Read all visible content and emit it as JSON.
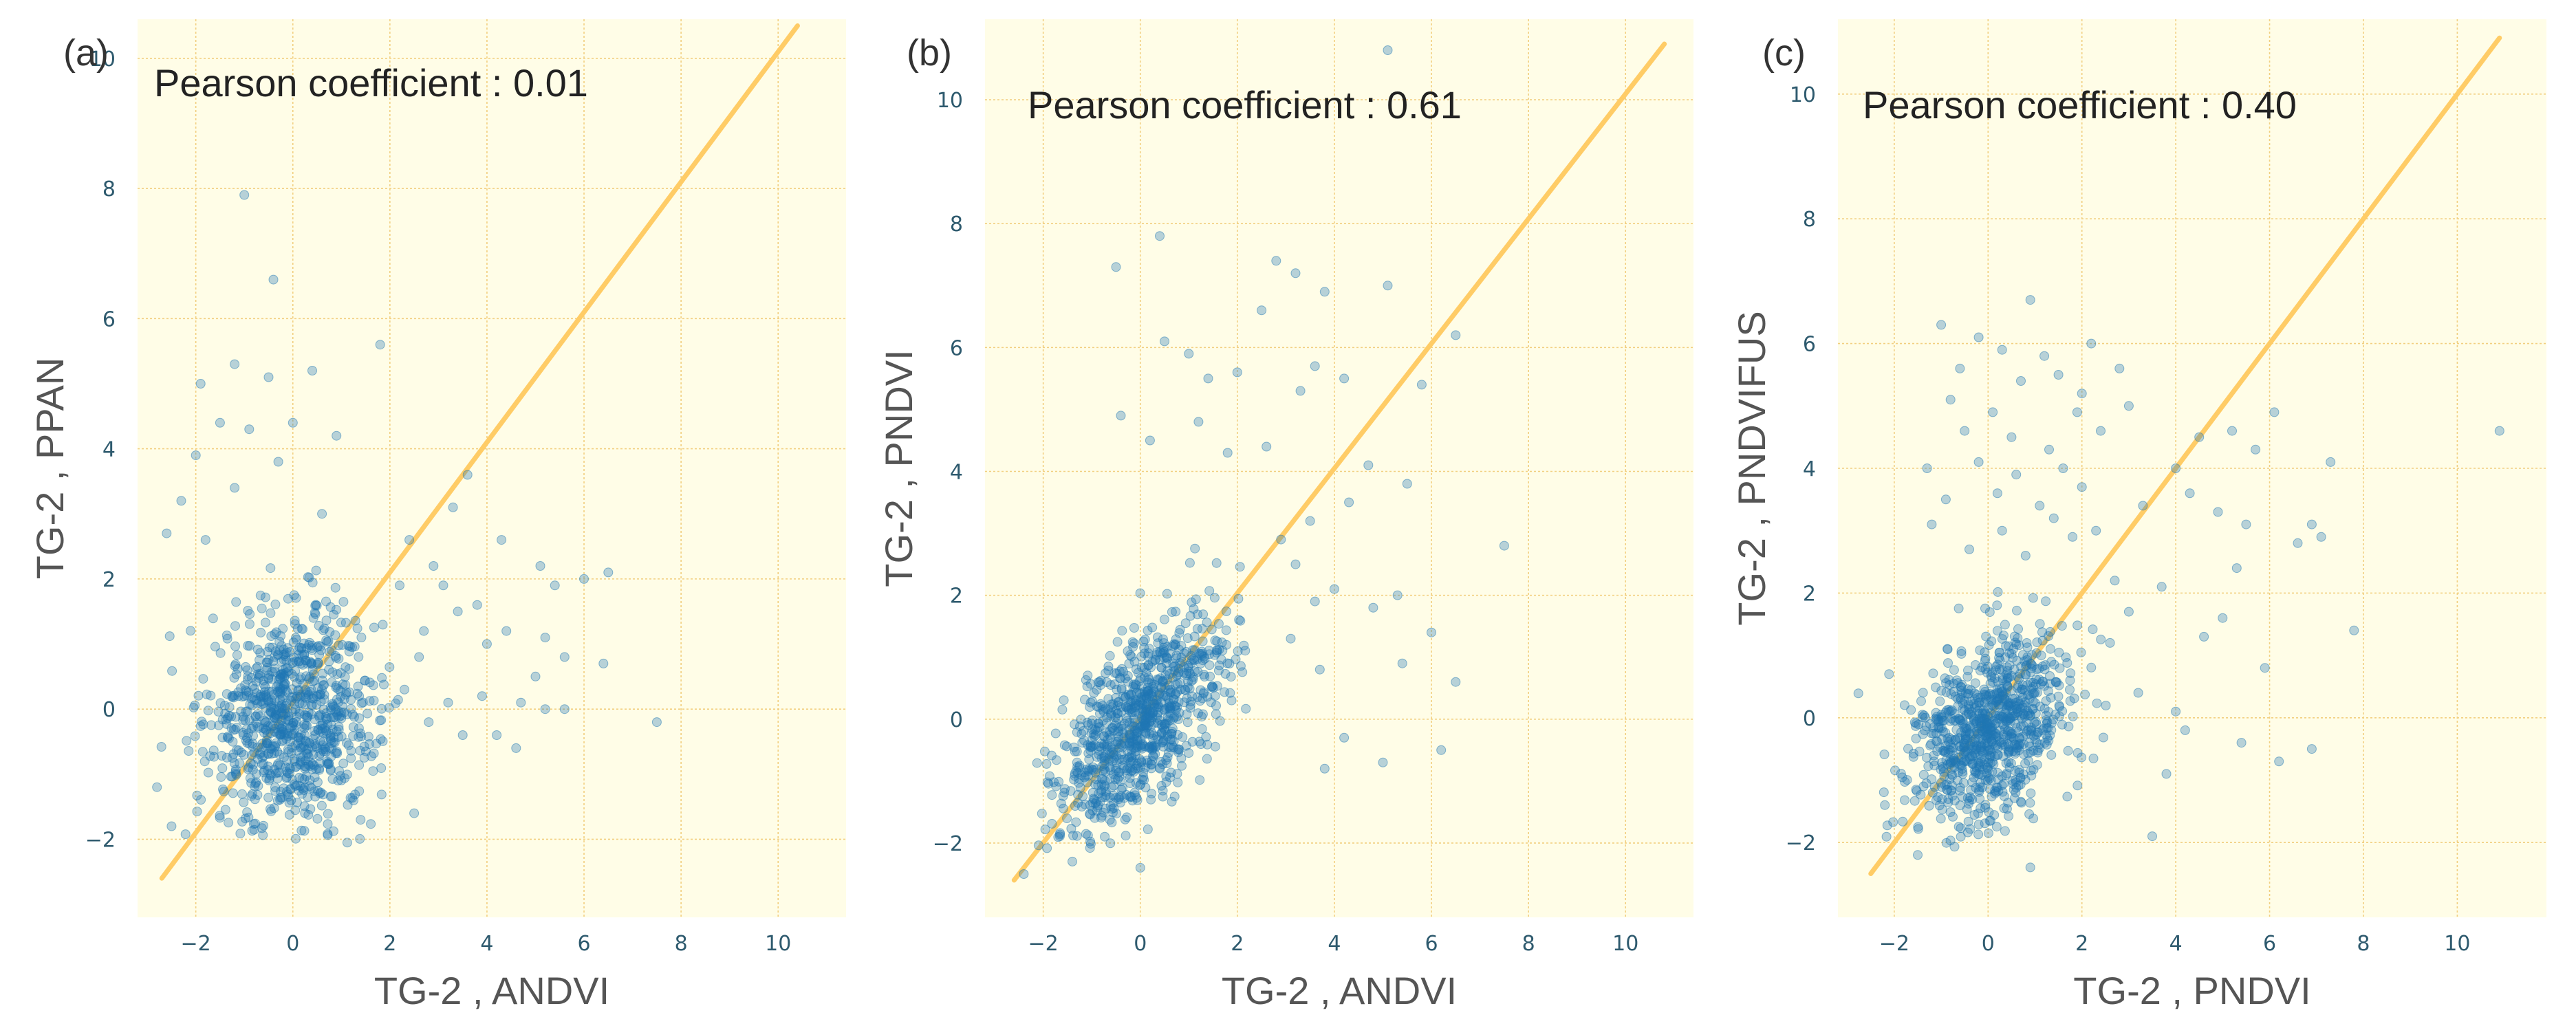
{
  "colors": {
    "panel_background": "#fffde7",
    "grid": "#f2cf80",
    "identity_line": "#ffcc66",
    "points": "#1f77b4",
    "tick_text": "#2e5a6e"
  },
  "chart_data": [
    {
      "type": "scatter",
      "panel_label": "(a)",
      "annotation": "Pearson coefficient : 0.01",
      "pearson": 0.01,
      "xlabel": "TG-2 , ANDVI",
      "ylabel": "TG-2 , PPAN",
      "xlim": [
        -3.2,
        11.4
      ],
      "ylim": [
        -3.2,
        10.6
      ],
      "xticks": [
        -2,
        0,
        2,
        4,
        6,
        8,
        10
      ],
      "yticks": [
        -2,
        0,
        2,
        4,
        6,
        8,
        10
      ],
      "grid": true,
      "identity_line": [
        [
          -2.7,
          -2.6
        ],
        [
          10.4,
          10.5
        ]
      ],
      "bulk": {
        "n": 900,
        "cx": 0.0,
        "cy": -0.15,
        "sx": 0.85,
        "sy": 0.85,
        "rho": 0.02
      },
      "outlier_points": [
        [
          -1.0,
          7.9
        ],
        [
          -0.4,
          6.6
        ],
        [
          1.8,
          5.6
        ],
        [
          0.4,
          5.2
        ],
        [
          -1.9,
          5.0
        ],
        [
          -1.2,
          5.3
        ],
        [
          -0.5,
          5.1
        ],
        [
          -1.5,
          4.4
        ],
        [
          -0.9,
          4.3
        ],
        [
          0.0,
          4.4
        ],
        [
          -2.0,
          3.9
        ],
        [
          -0.3,
          3.8
        ],
        [
          0.9,
          4.2
        ],
        [
          -2.3,
          3.2
        ],
        [
          -1.2,
          3.4
        ],
        [
          0.6,
          3.0
        ],
        [
          -1.8,
          2.6
        ],
        [
          -2.6,
          2.7
        ],
        [
          3.6,
          3.6
        ],
        [
          3.3,
          3.1
        ],
        [
          2.4,
          2.6
        ],
        [
          2.9,
          2.2
        ],
        [
          4.3,
          2.6
        ],
        [
          3.1,
          1.9
        ],
        [
          3.8,
          1.6
        ],
        [
          4.4,
          1.2
        ],
        [
          4.0,
          1.0
        ],
        [
          5.1,
          2.2
        ],
        [
          5.4,
          1.9
        ],
        [
          6.0,
          2.0
        ],
        [
          6.5,
          2.1
        ],
        [
          5.2,
          1.1
        ],
        [
          5.0,
          0.5
        ],
        [
          5.6,
          0.8
        ],
        [
          4.7,
          0.1
        ],
        [
          5.2,
          0.0
        ],
        [
          5.6,
          0.0
        ],
        [
          6.4,
          0.7
        ],
        [
          3.9,
          0.2
        ],
        [
          4.2,
          -0.4
        ],
        [
          4.6,
          -0.6
        ],
        [
          7.5,
          -0.2
        ],
        [
          2.2,
          1.9
        ],
        [
          2.6,
          0.8
        ],
        [
          2.3,
          0.3
        ],
        [
          2.8,
          -0.2
        ],
        [
          3.2,
          0.1
        ],
        [
          3.5,
          -0.4
        ],
        [
          2.7,
          1.2
        ],
        [
          3.4,
          1.5
        ],
        [
          -2.8,
          -1.2
        ],
        [
          -2.5,
          -1.8
        ],
        [
          2.5,
          -1.6
        ]
      ]
    },
    {
      "type": "scatter",
      "panel_label": "(b)",
      "annotation": "Pearson coefficient : 0.61",
      "pearson": 0.61,
      "xlabel": "TG-2 , ANDVI",
      "ylabel": "TG-2 , PNDVI",
      "xlim": [
        -3.2,
        11.4
      ],
      "ylim": [
        -3.2,
        11.3
      ],
      "xticks": [
        -2,
        0,
        2,
        4,
        6,
        8,
        10
      ],
      "yticks": [
        -2,
        0,
        2,
        4,
        6,
        8,
        10
      ],
      "grid": true,
      "identity_line": [
        [
          -2.6,
          -2.6
        ],
        [
          10.8,
          10.9
        ]
      ],
      "bulk": {
        "n": 900,
        "cx": 0.0,
        "cy": -0.1,
        "sx": 0.85,
        "sy": 0.85,
        "rho": 0.62
      },
      "outlier_points": [
        [
          5.1,
          10.8
        ],
        [
          0.4,
          7.8
        ],
        [
          -0.5,
          7.3
        ],
        [
          2.8,
          7.4
        ],
        [
          3.2,
          7.2
        ],
        [
          5.1,
          7.0
        ],
        [
          2.5,
          6.6
        ],
        [
          3.8,
          6.9
        ],
        [
          6.5,
          6.2
        ],
        [
          0.5,
          6.1
        ],
        [
          1.0,
          5.9
        ],
        [
          1.4,
          5.5
        ],
        [
          2.0,
          5.6
        ],
        [
          3.6,
          5.7
        ],
        [
          3.3,
          5.3
        ],
        [
          4.2,
          5.5
        ],
        [
          5.8,
          5.4
        ],
        [
          -0.4,
          4.9
        ],
        [
          1.2,
          4.8
        ],
        [
          2.6,
          4.4
        ],
        [
          1.8,
          4.3
        ],
        [
          0.2,
          4.5
        ],
        [
          4.7,
          4.1
        ],
        [
          5.5,
          3.8
        ],
        [
          3.5,
          3.2
        ],
        [
          4.3,
          3.5
        ],
        [
          7.5,
          2.8
        ],
        [
          5.3,
          2.0
        ],
        [
          4.8,
          1.8
        ],
        [
          6.0,
          1.4
        ],
        [
          3.1,
          1.3
        ],
        [
          3.7,
          0.8
        ],
        [
          4.2,
          -0.3
        ],
        [
          5.4,
          0.9
        ],
        [
          5.0,
          -0.7
        ],
        [
          6.2,
          -0.5
        ],
        [
          6.5,
          0.6
        ],
        [
          3.8,
          -0.8
        ],
        [
          -2.4,
          -2.5
        ],
        [
          -1.4,
          -2.3
        ],
        [
          0.0,
          -2.4
        ],
        [
          3.2,
          2.5
        ],
        [
          2.9,
          2.9
        ],
        [
          4.0,
          2.1
        ],
        [
          3.6,
          1.9
        ]
      ]
    },
    {
      "type": "scatter",
      "panel_label": "(c)",
      "annotation": "Pearson coefficient : 0.40",
      "pearson": 0.4,
      "xlabel": "TG-2 , PNDVI",
      "ylabel": "TG-2 , PNDVIFUS",
      "xlim": [
        -3.2,
        11.9
      ],
      "ylim": [
        -3.2,
        11.2
      ],
      "xticks": [
        -2,
        0,
        2,
        4,
        6,
        8,
        10
      ],
      "yticks": [
        -2,
        0,
        2,
        4,
        6,
        8,
        10
      ],
      "grid": true,
      "identity_line": [
        [
          -2.5,
          -2.5
        ],
        [
          10.9,
          10.9
        ]
      ],
      "bulk": {
        "n": 900,
        "cx": 0.0,
        "cy": -0.2,
        "sx": 0.85,
        "sy": 0.75,
        "rho": 0.28
      },
      "outlier_points": [
        [
          0.9,
          6.7
        ],
        [
          -1.0,
          6.3
        ],
        [
          -0.2,
          6.1
        ],
        [
          0.3,
          5.9
        ],
        [
          1.2,
          5.8
        ],
        [
          2.2,
          6.0
        ],
        [
          -0.6,
          5.6
        ],
        [
          0.7,
          5.4
        ],
        [
          1.5,
          5.5
        ],
        [
          2.0,
          5.2
        ],
        [
          -0.8,
          5.1
        ],
        [
          0.1,
          4.9
        ],
        [
          1.9,
          4.9
        ],
        [
          2.8,
          5.6
        ],
        [
          3.0,
          5.0
        ],
        [
          -0.5,
          4.6
        ],
        [
          0.5,
          4.5
        ],
        [
          1.3,
          4.3
        ],
        [
          2.4,
          4.6
        ],
        [
          -1.3,
          4.0
        ],
        [
          -0.2,
          4.1
        ],
        [
          0.6,
          3.9
        ],
        [
          1.6,
          4.0
        ],
        [
          -0.9,
          3.5
        ],
        [
          0.2,
          3.6
        ],
        [
          1.1,
          3.4
        ],
        [
          2.0,
          3.7
        ],
        [
          -1.2,
          3.1
        ],
        [
          0.3,
          3.0
        ],
        [
          1.4,
          3.2
        ],
        [
          2.3,
          3.0
        ],
        [
          -0.4,
          2.7
        ],
        [
          0.8,
          2.6
        ],
        [
          1.8,
          2.9
        ],
        [
          3.3,
          3.4
        ],
        [
          4.0,
          4.0
        ],
        [
          4.5,
          4.5
        ],
        [
          5.2,
          4.6
        ],
        [
          5.7,
          4.3
        ],
        [
          6.1,
          4.9
        ],
        [
          4.3,
          3.6
        ],
        [
          4.9,
          3.3
        ],
        [
          5.5,
          3.1
        ],
        [
          5.3,
          2.4
        ],
        [
          6.6,
          2.8
        ],
        [
          6.9,
          3.1
        ],
        [
          7.1,
          2.9
        ],
        [
          7.3,
          4.1
        ],
        [
          7.8,
          1.4
        ],
        [
          10.9,
          4.6
        ],
        [
          3.7,
          2.1
        ],
        [
          4.6,
          1.3
        ],
        [
          5.0,
          1.6
        ],
        [
          5.9,
          0.8
        ],
        [
          6.2,
          -0.7
        ],
        [
          6.9,
          -0.5
        ],
        [
          4.0,
          0.1
        ],
        [
          3.2,
          0.4
        ],
        [
          4.2,
          -0.2
        ],
        [
          3.8,
          -0.9
        ],
        [
          5.4,
          -0.4
        ],
        [
          3.5,
          -1.9
        ],
        [
          -2.2,
          -1.4
        ],
        [
          -1.5,
          -2.2
        ],
        [
          0.9,
          -2.4
        ],
        [
          2.6,
          1.2
        ],
        [
          3.0,
          1.7
        ],
        [
          2.7,
          2.2
        ]
      ]
    }
  ]
}
